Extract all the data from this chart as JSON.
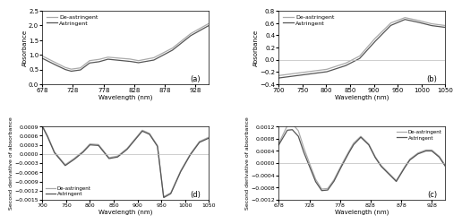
{
  "panel_a": {
    "xlabel": "Wavelength (nm)",
    "ylabel": "Absorbance",
    "label": "(a)",
    "xmin": 678,
    "xmax": 950,
    "ymin": 0.0,
    "ymax": 2.5,
    "yticks": [
      0.0,
      0.5,
      1.0,
      1.5,
      2.0,
      2.5
    ],
    "xticks": [
      678,
      728,
      778,
      828,
      878,
      928
    ]
  },
  "panel_b": {
    "xlabel": "Wavelength (nm)",
    "ylabel": "Absorbance",
    "label": "(b)",
    "xmin": 700,
    "xmax": 1050,
    "ymin": -0.4,
    "ymax": 0.8,
    "yticks": [
      -0.4,
      -0.2,
      0.0,
      0.2,
      0.4,
      0.6,
      0.8
    ],
    "xticks": [
      700,
      750,
      800,
      850,
      900,
      950,
      1000,
      1050
    ]
  },
  "panel_c": {
    "xlabel": "Wavelength (nm)",
    "ylabel": "Second derivative of absorbance",
    "label": "(c)",
    "xmin": 678,
    "xmax": 950,
    "ymin": -0.0012,
    "ymax": 0.0012,
    "yticks": [
      -0.0012,
      -0.0008,
      -0.0004,
      0.0,
      0.0004,
      0.0008,
      0.0012
    ],
    "xticks": [
      678,
      728,
      778,
      828,
      878,
      928
    ]
  },
  "panel_d": {
    "xlabel": "Wavelength (nm)",
    "ylabel": "Second derivative of absorbance",
    "label": "(d)",
    "xmin": 700,
    "xmax": 1050,
    "ymin": -0.0015,
    "ymax": 0.0009,
    "yticks": [
      -0.0015,
      -0.0012,
      -0.0009,
      -0.0006,
      -0.0003,
      0.0,
      0.0003,
      0.0006,
      0.0009
    ],
    "xticks": [
      700,
      750,
      800,
      850,
      900,
      950,
      1000,
      1050
    ]
  },
  "color_deastringent": "#aaaaaa",
  "color_astringent": "#555555",
  "background": "#ffffff",
  "hline_color": "#bbbbbb"
}
